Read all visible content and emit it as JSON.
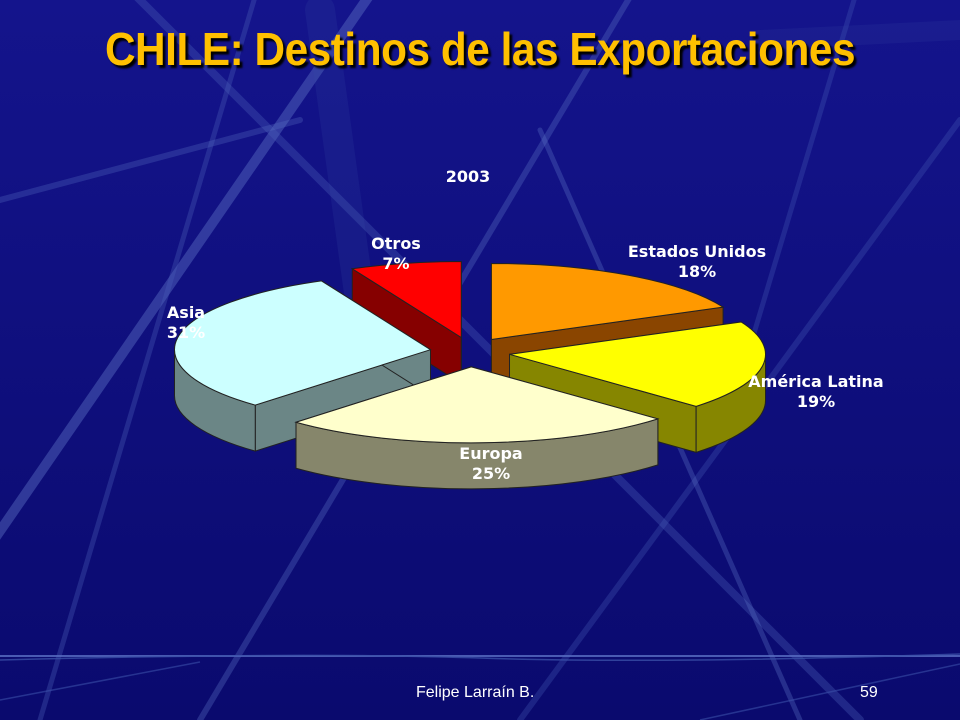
{
  "slide": {
    "title": "CHILE: Destinos de las Exportaciones",
    "footer_author": "Felipe Larraín B.",
    "page_number": "59"
  },
  "colors": {
    "background": "#0f0f84",
    "title": "#ffc000",
    "text": "#ffffff"
  },
  "chart_data": {
    "type": "pie",
    "style": "3d-exploded",
    "title": "2003",
    "unit": "%",
    "slices": [
      {
        "label": "Estados Unidos",
        "value": 18,
        "value_label": "18%",
        "top_color": "#ff9900",
        "side_color": "#8a4500"
      },
      {
        "label": "América Latina",
        "value": 19,
        "value_label": "19%",
        "top_color": "#ffff00",
        "side_color": "#868600"
      },
      {
        "label": "Europa",
        "value": 25,
        "value_label": "25%",
        "top_color": "#ffffcc",
        "side_color": "#86866b"
      },
      {
        "label": "Asia",
        "value": 31,
        "value_label": "31%",
        "top_color": "#ccffff",
        "side_color": "#6b8686"
      },
      {
        "label": "Otros",
        "value": 7,
        "value_label": "7%",
        "top_color": "#ff0000",
        "side_color": "#860000"
      }
    ]
  }
}
